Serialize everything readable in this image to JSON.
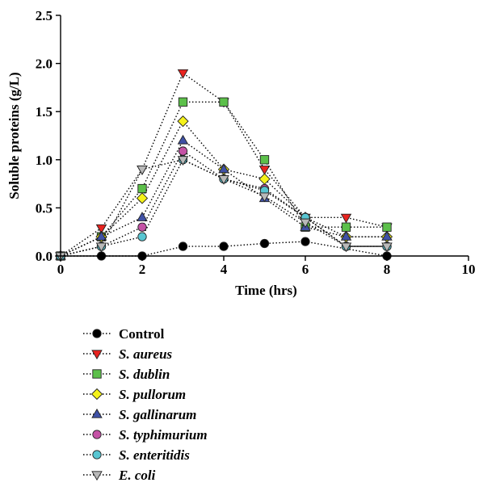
{
  "chart_data": {
    "type": "line",
    "title": "",
    "xlabel": "Time (hrs)",
    "ylabel": "Soluble proteins (g/L)",
    "xlim": [
      0,
      10
    ],
    "ylim": [
      0,
      2.5
    ],
    "x_ticks": [
      "0",
      "2",
      "4",
      "6",
      "8",
      "10"
    ],
    "y_ticks": [
      "0.0",
      "0.5",
      "1.0",
      "1.5",
      "2.0",
      "2.5"
    ],
    "grid": false,
    "legend_position": "bottom",
    "line_style": "dotted",
    "series": [
      {
        "name": "Control",
        "italic": false,
        "marker": "circle",
        "color": "#000000",
        "points": [
          [
            0,
            0
          ],
          [
            1,
            0
          ],
          [
            2,
            0
          ],
          [
            3,
            0.1
          ],
          [
            4,
            0.1
          ],
          [
            5,
            0.13
          ],
          [
            6,
            0.15
          ],
          [
            8,
            0.0
          ]
        ]
      },
      {
        "name": "S. aureus",
        "italic": true,
        "marker": "triangle-down",
        "color": "#e8231f",
        "points": [
          [
            0,
            0
          ],
          [
            1,
            0.29
          ],
          [
            2,
            0.9
          ],
          [
            3,
            1.9
          ],
          [
            4,
            1.6
          ],
          [
            5,
            0.9
          ],
          [
            6,
            0.4
          ],
          [
            7,
            0.4
          ],
          [
            8,
            0.3
          ]
        ]
      },
      {
        "name": "S. dublin",
        "italic": true,
        "marker": "square",
        "color": "#5cc04a",
        "points": [
          [
            0,
            0
          ],
          [
            1,
            0.2
          ],
          [
            2,
            0.7
          ],
          [
            3,
            1.6
          ],
          [
            4,
            1.6
          ],
          [
            5,
            1.0
          ],
          [
            6,
            0.3
          ],
          [
            7,
            0.3
          ],
          [
            8,
            0.3
          ]
        ]
      },
      {
        "name": "S. pullorum",
        "italic": true,
        "marker": "diamond",
        "color": "#f5f21a",
        "points": [
          [
            0,
            0
          ],
          [
            1,
            0.2
          ],
          [
            2,
            0.6
          ],
          [
            3,
            1.4
          ],
          [
            4,
            0.9
          ],
          [
            5,
            0.8
          ],
          [
            6,
            0.4
          ],
          [
            7,
            0.2
          ],
          [
            8,
            0.2
          ]
        ]
      },
      {
        "name": "S. gallinarum",
        "italic": true,
        "marker": "triangle-up",
        "color": "#3f51a6",
        "points": [
          [
            0,
            0
          ],
          [
            1,
            0.2
          ],
          [
            2,
            0.4
          ],
          [
            3,
            1.2
          ],
          [
            4,
            0.9
          ],
          [
            5,
            0.6
          ],
          [
            6,
            0.3
          ],
          [
            7,
            0.2
          ],
          [
            8,
            0.2
          ]
        ]
      },
      {
        "name": "S. typhimurium",
        "italic": true,
        "marker": "circle",
        "color": "#c452a5",
        "points": [
          [
            0,
            0
          ],
          [
            1,
            0.1
          ],
          [
            2,
            0.3
          ],
          [
            3,
            1.09
          ],
          [
            4,
            0.8
          ],
          [
            5,
            0.7
          ],
          [
            6,
            0.4
          ],
          [
            7,
            0.1
          ],
          [
            8,
            0.1
          ]
        ]
      },
      {
        "name": "S. enteritidis",
        "italic": true,
        "marker": "circle",
        "color": "#58c6d2",
        "points": [
          [
            0,
            0
          ],
          [
            1,
            0.1
          ],
          [
            2,
            0.2
          ],
          [
            3,
            1.0
          ],
          [
            4,
            0.8
          ],
          [
            5,
            0.68
          ],
          [
            6,
            0.4
          ],
          [
            7,
            0.1
          ],
          [
            8,
            0.1
          ]
        ]
      },
      {
        "name": "E. coli",
        "italic": true,
        "marker": "triangle-down",
        "color": "#b9b9b9",
        "points": [
          [
            0,
            0
          ],
          [
            1,
            0.1
          ],
          [
            2,
            0.9
          ],
          [
            3,
            1.0
          ],
          [
            4,
            0.8
          ],
          [
            5,
            0.62
          ],
          [
            6,
            0.35
          ],
          [
            7,
            0.1
          ],
          [
            8,
            0.1
          ]
        ]
      }
    ]
  }
}
